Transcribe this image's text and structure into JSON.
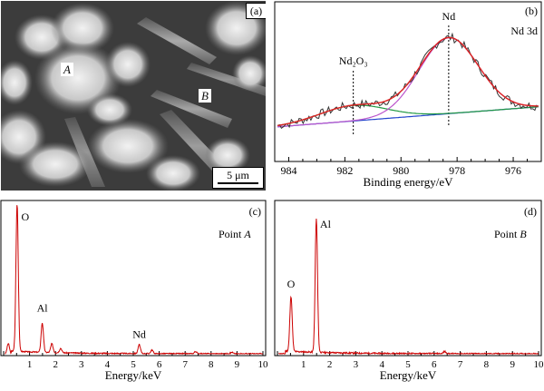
{
  "panels": {
    "a": {
      "letter": "(a)",
      "markers": [
        "A",
        "B"
      ],
      "scale_label": "5 μm"
    },
    "b": {
      "letter": "(b)",
      "title": "Nd 3d",
      "xlabel": "Binding energy/eV",
      "annotations": {
        "nd": "Nd",
        "nd2o3": "Nd₂O₃"
      }
    },
    "c": {
      "letter": "(c)",
      "caption_prefix": "Point ",
      "caption_point": "A",
      "xlabel": "Energy/keV",
      "peak_labels": [
        "O",
        "Al",
        "Nd"
      ]
    },
    "d": {
      "letter": "(d)",
      "caption_prefix": "Point ",
      "caption_point": "B",
      "xlabel": "Energy/keV",
      "peak_labels": [
        "O",
        "Al"
      ]
    }
  },
  "colors": {
    "eds": "#cc0000",
    "xps_raw": "#333333",
    "xps_fit": "#dd2222",
    "xps_nd": "#bb55cc",
    "xps_nd2o3": "#229944",
    "xps_bg": "#2244cc"
  },
  "chart_data": [
    {
      "type": "line",
      "panel": "b",
      "title": "Nd 3d",
      "xlabel": "Binding energy/eV",
      "ylabel": "",
      "xlim": [
        984.5,
        975.0
      ],
      "x_ticks": [
        984,
        982,
        980,
        978,
        976
      ],
      "reversed_x": true,
      "peaks": [
        {
          "name": "Nd",
          "center": 978.3
        },
        {
          "name": "Nd₂O₃",
          "center": 981.7
        }
      ],
      "series": [
        {
          "x": [
            984.4,
            984.0,
            983.5,
            983.0,
            982.5,
            982.0,
            981.5,
            981.0,
            980.5,
            980.0,
            979.5,
            979.0,
            978.5,
            978.0,
            977.5,
            977.0,
            976.5,
            976.0,
            975.5,
            975.1
          ],
          "y": [
            0.08,
            0.12,
            0.2,
            0.3,
            0.4,
            0.48,
            0.55,
            0.62,
            0.7,
            0.78,
            0.86,
            0.93,
            0.97,
            0.97,
            0.91,
            0.8,
            0.64,
            0.45,
            0.3,
            0.22
          ]
        }
      ]
    },
    {
      "type": "line",
      "panel": "c",
      "xlabel": "Energy/keV",
      "ylabel": "",
      "xlim": [
        0,
        10
      ],
      "x_ticks": [
        1,
        2,
        3,
        4,
        5,
        6,
        7,
        8,
        9,
        10
      ],
      "peaks": [
        {
          "label": "O",
          "x": 0.52,
          "y": 1.0
        },
        {
          "label": "Al",
          "x": 1.49,
          "y": 0.2
        },
        {
          "label": "Nd",
          "x": 5.23,
          "y": 0.06
        }
      ],
      "minor_peaks": [
        {
          "x": 0.18,
          "y": 0.07
        },
        {
          "x": 1.86,
          "y": 0.06
        },
        {
          "x": 2.2,
          "y": 0.03
        },
        {
          "x": 5.72,
          "y": 0.025
        },
        {
          "x": 7.4,
          "y": 0.015
        },
        {
          "x": 8.8,
          "y": 0.01
        }
      ]
    },
    {
      "type": "line",
      "panel": "d",
      "xlabel": "Energy/keV",
      "ylabel": "",
      "xlim": [
        0,
        10
      ],
      "x_ticks": [
        1,
        2,
        3,
        4,
        5,
        6,
        7,
        8,
        9,
        10
      ],
      "peaks": [
        {
          "label": "O",
          "x": 0.52,
          "y": 0.38
        },
        {
          "label": "Al",
          "x": 1.49,
          "y": 0.92
        }
      ],
      "minor_peaks": [
        {
          "x": 6.4,
          "y": 0.015
        }
      ]
    }
  ]
}
